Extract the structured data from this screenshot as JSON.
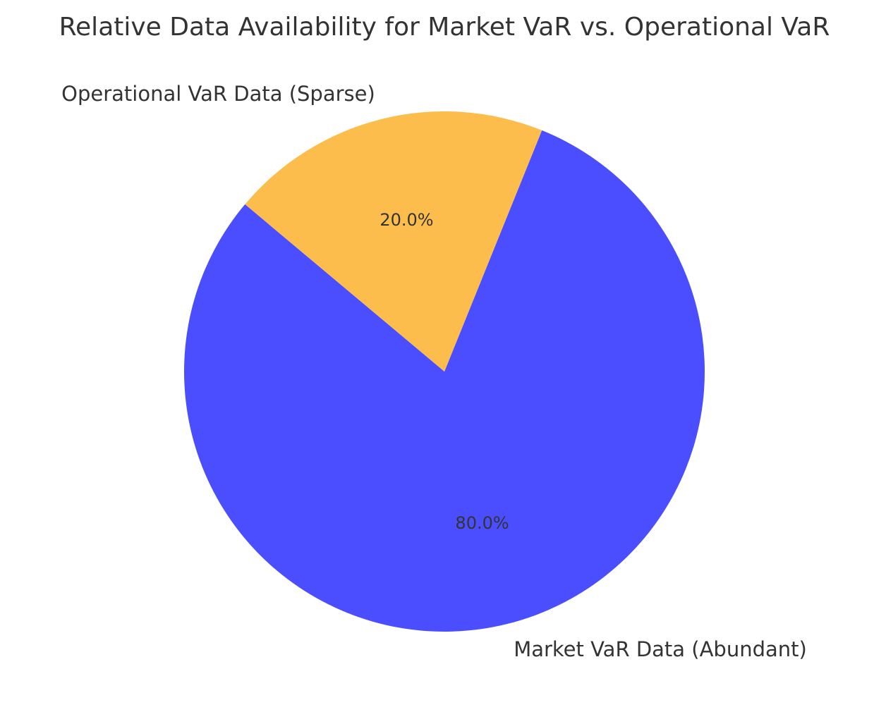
{
  "chart_data": {
    "type": "pie",
    "title": "Relative Data Availability for Market VaR vs. Operational VaR",
    "slices": [
      {
        "label": "Market VaR Data (Abundant)",
        "value": 80,
        "pct_label": "80.0%",
        "color": "#4b4eff"
      },
      {
        "label": "Operational VaR Data (Sparse)",
        "value": 20,
        "pct_label": "20.0%",
        "color": "#fdbd4d"
      }
    ],
    "start_angle_deg": 140,
    "direction": "counterclockwise",
    "legend": "none"
  }
}
